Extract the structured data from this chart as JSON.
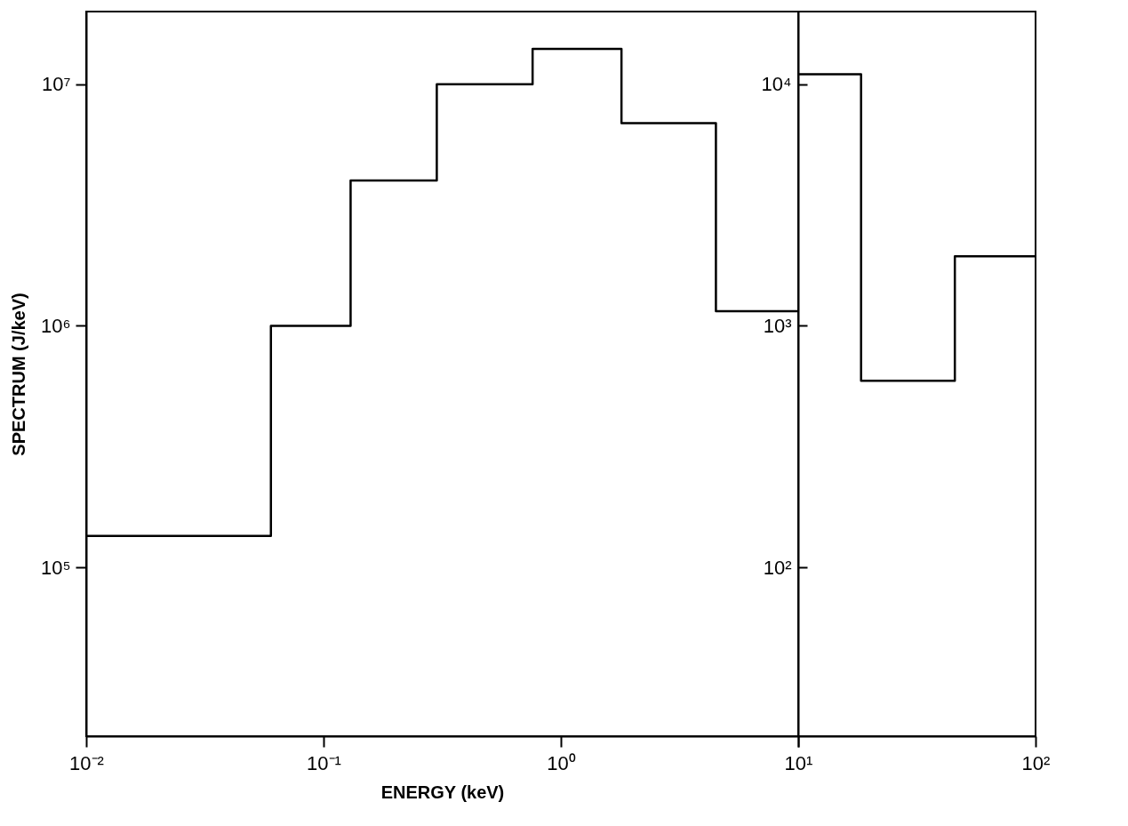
{
  "chart_data": [
    {
      "type": "step",
      "xlabel": "ENERGY (keV)",
      "ylabel": "SPECTRUM (J/keV)",
      "xlim": [
        0.01,
        10
      ],
      "ylim": [
        20000,
        20000000
      ],
      "xticks": [
        {
          "value": 0.01,
          "label": "10⁻²"
        },
        {
          "value": 0.1,
          "label": "10⁻¹"
        },
        {
          "value": 1,
          "label": "10⁰"
        },
        {
          "value": 10,
          "label": null
        }
      ],
      "yticks": [
        {
          "value": 100000,
          "label": "10⁵"
        },
        {
          "value": 1000000,
          "label": "10⁶"
        },
        {
          "value": 10000000,
          "label": "10⁷"
        }
      ],
      "log": "xy",
      "grid": false,
      "marker": "none",
      "line_style": "solid",
      "series": [
        {
          "color": "#000000",
          "x": [
            0.01,
            0.06,
            0.13,
            0.3,
            0.76,
            1.8,
            4.5,
            10
          ],
          "values": [
            135000,
            1000000,
            4000000,
            10000000,
            14000000,
            6900000,
            1150000,
            1150000
          ]
        }
      ]
    },
    {
      "type": "step",
      "xlim": [
        10,
        100
      ],
      "ylim": [
        20,
        20000
      ],
      "xticks": [
        {
          "value": 10,
          "label": "10¹"
        },
        {
          "value": 100,
          "label": "10²"
        }
      ],
      "yticks": [
        {
          "value": 100,
          "label": "10²"
        },
        {
          "value": 1000,
          "label": "10³"
        },
        {
          "value": 10000,
          "label": "10⁴"
        }
      ],
      "log": "xy",
      "grid": false,
      "marker": "none",
      "line_style": "solid",
      "series": [
        {
          "color": "#000000",
          "x": [
            10,
            18.4,
            45.7,
            100
          ],
          "values": [
            11000,
            592,
            1940,
            1940
          ]
        }
      ]
    }
  ]
}
